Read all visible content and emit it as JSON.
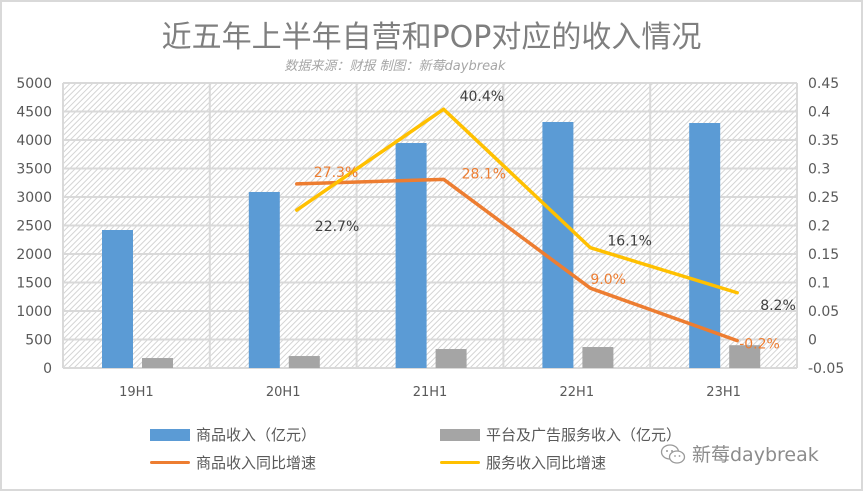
{
  "chart_data": {
    "type": "bar",
    "title": "近五年上半年自营和POP对应的收入情况",
    "subtitle": "数据来源：财报 制图：新莓daybreak",
    "categories": [
      "19H1",
      "20H1",
      "21H1",
      "22H1",
      "23H1"
    ],
    "xlabel": "",
    "ylabel": "",
    "ylim": [
      0,
      5000
    ],
    "y_ticks": [
      "0",
      "500",
      "1000",
      "1500",
      "2000",
      "2500",
      "3000",
      "3500",
      "4000",
      "4500",
      "5000"
    ],
    "y2lim": [
      -0.05,
      0.45
    ],
    "y2_ticks": [
      "-0.05",
      "0",
      "0.05",
      "0.1",
      "0.15",
      "0.2",
      "0.25",
      "0.3",
      "0.35",
      "0.4",
      "0.45"
    ],
    "grid": true,
    "legend_position": "bottom",
    "series": [
      {
        "name": "商品收入（亿元）",
        "type": "bar",
        "axis": "left",
        "color": "#5b9bd5",
        "values": [
          2421,
          3088,
          3947,
          4316,
          4298
        ]
      },
      {
        "name": "平台及广告服务收入（亿元）",
        "type": "bar",
        "axis": "left",
        "color": "#a5a5a5",
        "values": [
          175,
          210,
          333,
          368,
          400
        ]
      },
      {
        "name": "商品收入同比增速",
        "type": "line",
        "axis": "right",
        "color": "#ed7d31",
        "values": [
          null,
          0.273,
          0.281,
          0.09,
          -0.002
        ],
        "labels": [
          null,
          "27.3%",
          "28.1%",
          "9.0%",
          "-0.2%"
        ]
      },
      {
        "name": "服务收入同比增速",
        "type": "line",
        "axis": "right",
        "color": "#ffc000",
        "values": [
          null,
          0.227,
          0.404,
          0.161,
          0.082
        ],
        "labels": [
          null,
          "22.7%",
          "40.4%",
          "16.1%",
          "8.2%"
        ]
      }
    ]
  },
  "watermark": {
    "text": "新莓daybreak",
    "icon": "wechat-icon"
  }
}
